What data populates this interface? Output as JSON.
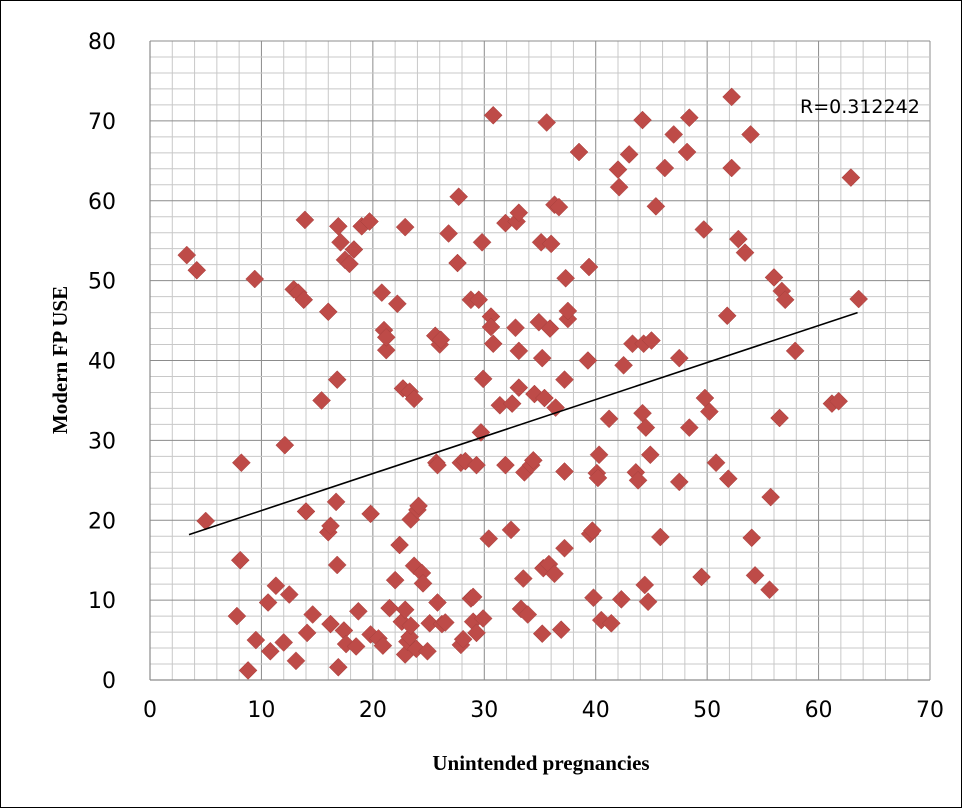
{
  "chart_data": {
    "type": "scatter",
    "xlabel": "Unintended pregnancies",
    "ylabel": "Modern FP USE",
    "xlim": [
      0,
      70
    ],
    "ylim": [
      0,
      80
    ],
    "xticks": [
      0,
      10,
      20,
      30,
      40,
      50,
      60,
      70
    ],
    "yticks": [
      0,
      10,
      20,
      30,
      40,
      50,
      60,
      70,
      80
    ],
    "annotation": "R=0.312242",
    "grid": true,
    "marker_color": "#be4b48",
    "trendline": {
      "x": [
        3.5,
        63.5
      ],
      "y": [
        18.2,
        46.0
      ],
      "color": "#000000"
    },
    "points": [
      [
        3.3,
        53.2
      ],
      [
        4.2,
        51.3
      ],
      [
        5.0,
        19.9
      ],
      [
        8.2,
        27.2
      ],
      [
        8.1,
        15.0
      ],
      [
        7.8,
        8.0
      ],
      [
        8.8,
        1.2
      ],
      [
        9.4,
        50.2
      ],
      [
        9.5,
        5.0
      ],
      [
        10.6,
        9.7
      ],
      [
        10.8,
        3.6
      ],
      [
        11.3,
        11.8
      ],
      [
        12.0,
        4.7
      ],
      [
        12.1,
        29.4
      ],
      [
        12.5,
        10.7
      ],
      [
        12.9,
        48.9
      ],
      [
        13.1,
        2.4
      ],
      [
        13.3,
        48.5
      ],
      [
        13.8,
        47.6
      ],
      [
        13.9,
        57.6
      ],
      [
        14.0,
        21.1
      ],
      [
        14.1,
        5.9
      ],
      [
        14.6,
        8.2
      ],
      [
        15.4,
        35.0
      ],
      [
        16.0,
        46.1
      ],
      [
        16.0,
        18.5
      ],
      [
        16.2,
        19.3
      ],
      [
        16.2,
        7.0
      ],
      [
        16.7,
        22.3
      ],
      [
        16.8,
        37.6
      ],
      [
        16.8,
        14.4
      ],
      [
        16.9,
        1.6
      ],
      [
        16.9,
        56.8
      ],
      [
        17.1,
        54.8
      ],
      [
        17.4,
        6.2
      ],
      [
        17.5,
        52.6
      ],
      [
        17.6,
        4.5
      ],
      [
        17.9,
        52.1
      ],
      [
        18.3,
        53.9
      ],
      [
        18.5,
        4.2
      ],
      [
        18.7,
        8.6
      ],
      [
        19.0,
        56.8
      ],
      [
        19.7,
        57.4
      ],
      [
        19.8,
        20.8
      ],
      [
        19.8,
        5.7
      ],
      [
        20.5,
        5.2
      ],
      [
        20.8,
        48.5
      ],
      [
        20.9,
        4.3
      ],
      [
        21.0,
        43.8
      ],
      [
        21.2,
        41.3
      ],
      [
        21.2,
        42.9
      ],
      [
        21.5,
        9.0
      ],
      [
        22.0,
        12.5
      ],
      [
        22.2,
        47.1
      ],
      [
        22.4,
        16.9
      ],
      [
        22.6,
        7.3
      ],
      [
        22.7,
        36.5
      ],
      [
        22.9,
        56.7
      ],
      [
        22.9,
        8.8
      ],
      [
        22.9,
        3.2
      ],
      [
        23.1,
        4.8
      ],
      [
        23.3,
        36.1
      ],
      [
        23.3,
        5.4
      ],
      [
        23.4,
        6.8
      ],
      [
        23.4,
        20.1
      ],
      [
        23.7,
        35.2
      ],
      [
        23.7,
        14.3
      ],
      [
        23.9,
        3.9
      ],
      [
        24.0,
        21.3
      ],
      [
        24.1,
        21.8
      ],
      [
        24.4,
        13.4
      ],
      [
        24.5,
        12.1
      ],
      [
        24.9,
        3.6
      ],
      [
        25.1,
        7.1
      ],
      [
        25.6,
        43.1
      ],
      [
        25.7,
        27.2
      ],
      [
        25.8,
        26.9
      ],
      [
        25.8,
        9.7
      ],
      [
        26.0,
        42.0
      ],
      [
        26.1,
        42.6
      ],
      [
        26.2,
        7.0
      ],
      [
        26.5,
        7.2
      ],
      [
        26.8,
        55.9
      ],
      [
        27.6,
        52.2
      ],
      [
        27.7,
        60.5
      ],
      [
        27.9,
        27.2
      ],
      [
        27.9,
        4.4
      ],
      [
        28.1,
        5.1
      ],
      [
        28.3,
        27.4
      ],
      [
        28.8,
        47.6
      ],
      [
        28.8,
        10.2
      ],
      [
        29.0,
        10.4
      ],
      [
        29.0,
        7.3
      ],
      [
        29.3,
        26.9
      ],
      [
        29.3,
        5.9
      ],
      [
        29.5,
        47.6
      ],
      [
        29.7,
        31.0
      ],
      [
        29.8,
        54.8
      ],
      [
        29.9,
        37.7
      ],
      [
        29.9,
        7.7
      ],
      [
        30.4,
        17.7
      ],
      [
        30.6,
        45.5
      ],
      [
        30.6,
        44.2
      ],
      [
        30.8,
        70.7
      ],
      [
        30.8,
        42.1
      ],
      [
        31.4,
        34.4
      ],
      [
        31.9,
        26.9
      ],
      [
        31.9,
        57.2
      ],
      [
        32.4,
        18.8
      ],
      [
        32.5,
        34.6
      ],
      [
        32.8,
        44.1
      ],
      [
        32.9,
        57.4
      ],
      [
        33.1,
        58.5
      ],
      [
        33.1,
        41.2
      ],
      [
        33.1,
        36.6
      ],
      [
        33.3,
        8.9
      ],
      [
        33.5,
        12.7
      ],
      [
        33.6,
        26.0
      ],
      [
        33.9,
        8.2
      ],
      [
        34.2,
        26.9
      ],
      [
        34.4,
        27.5
      ],
      [
        34.5,
        35.8
      ],
      [
        34.9,
        44.8
      ],
      [
        35.1,
        54.8
      ],
      [
        35.2,
        40.3
      ],
      [
        35.2,
        5.8
      ],
      [
        35.3,
        14.0
      ],
      [
        35.4,
        35.3
      ],
      [
        35.6,
        69.8
      ],
      [
        35.8,
        14.5
      ],
      [
        35.9,
        44.0
      ],
      [
        36.0,
        54.6
      ],
      [
        36.3,
        59.5
      ],
      [
        36.3,
        13.3
      ],
      [
        36.4,
        34.1
      ],
      [
        36.7,
        59.2
      ],
      [
        36.9,
        6.3
      ],
      [
        37.2,
        37.6
      ],
      [
        37.2,
        16.5
      ],
      [
        37.2,
        26.1
      ],
      [
        37.3,
        50.3
      ],
      [
        37.5,
        45.2
      ],
      [
        37.5,
        46.2
      ],
      [
        38.5,
        66.1
      ],
      [
        39.3,
        40.0
      ],
      [
        39.4,
        51.7
      ],
      [
        39.5,
        18.3
      ],
      [
        39.7,
        18.7
      ],
      [
        39.8,
        10.3
      ],
      [
        40.1,
        25.9
      ],
      [
        40.2,
        25.3
      ],
      [
        40.3,
        28.2
      ],
      [
        40.5,
        7.5
      ],
      [
        41.2,
        32.7
      ],
      [
        41.4,
        7.1
      ],
      [
        42.0,
        63.9
      ],
      [
        42.1,
        61.7
      ],
      [
        42.3,
        10.1
      ],
      [
        42.5,
        39.4
      ],
      [
        43.0,
        65.8
      ],
      [
        43.3,
        42.1
      ],
      [
        43.6,
        26.0
      ],
      [
        43.8,
        25.0
      ],
      [
        44.2,
        70.1
      ],
      [
        44.2,
        33.4
      ],
      [
        44.3,
        42.1
      ],
      [
        44.4,
        11.9
      ],
      [
        44.5,
        31.6
      ],
      [
        44.7,
        9.8
      ],
      [
        44.9,
        28.2
      ],
      [
        45.0,
        42.5
      ],
      [
        45.4,
        59.3
      ],
      [
        45.8,
        17.9
      ],
      [
        46.2,
        64.1
      ],
      [
        47.0,
        68.3
      ],
      [
        47.5,
        40.3
      ],
      [
        47.5,
        24.8
      ],
      [
        48.2,
        66.1
      ],
      [
        48.4,
        70.4
      ],
      [
        48.4,
        31.6
      ],
      [
        49.5,
        12.9
      ],
      [
        49.7,
        56.4
      ],
      [
        49.8,
        35.3
      ],
      [
        50.2,
        33.6
      ],
      [
        50.8,
        27.2
      ],
      [
        51.8,
        45.6
      ],
      [
        51.9,
        25.2
      ],
      [
        52.2,
        73.0
      ],
      [
        52.2,
        64.1
      ],
      [
        52.8,
        55.2
      ],
      [
        53.4,
        53.5
      ],
      [
        53.9,
        68.3
      ],
      [
        54.0,
        17.8
      ],
      [
        54.3,
        13.1
      ],
      [
        55.6,
        11.3
      ],
      [
        55.7,
        22.9
      ],
      [
        56.0,
        50.4
      ],
      [
        56.5,
        32.8
      ],
      [
        56.7,
        48.7
      ],
      [
        57.0,
        47.6
      ],
      [
        57.9,
        41.2
      ],
      [
        61.2,
        34.6
      ],
      [
        61.8,
        34.9
      ],
      [
        62.9,
        62.9
      ],
      [
        63.6,
        47.7
      ]
    ]
  }
}
